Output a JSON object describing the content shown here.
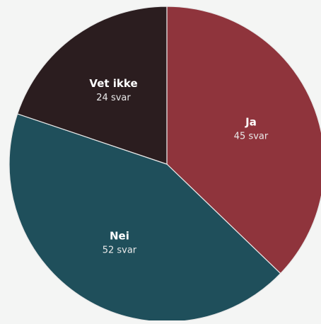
{
  "chart_data": {
    "type": "pie",
    "title": "",
    "start_angle_deg": 0,
    "direction": "clockwise",
    "colors": {
      "background": "#f4f5f4",
      "separator": "#e8e8e8"
    },
    "slices": [
      {
        "name": "Ja",
        "value": 45,
        "value_label": "45 svar",
        "color": "#8f343c"
      },
      {
        "name": "Nei",
        "value": 52,
        "value_label": "52 svar",
        "color": "#1f4f5b"
      },
      {
        "name": "Vet ikke",
        "value": 24,
        "value_label": "24 svar",
        "color": "#2b1d1f"
      }
    ]
  }
}
